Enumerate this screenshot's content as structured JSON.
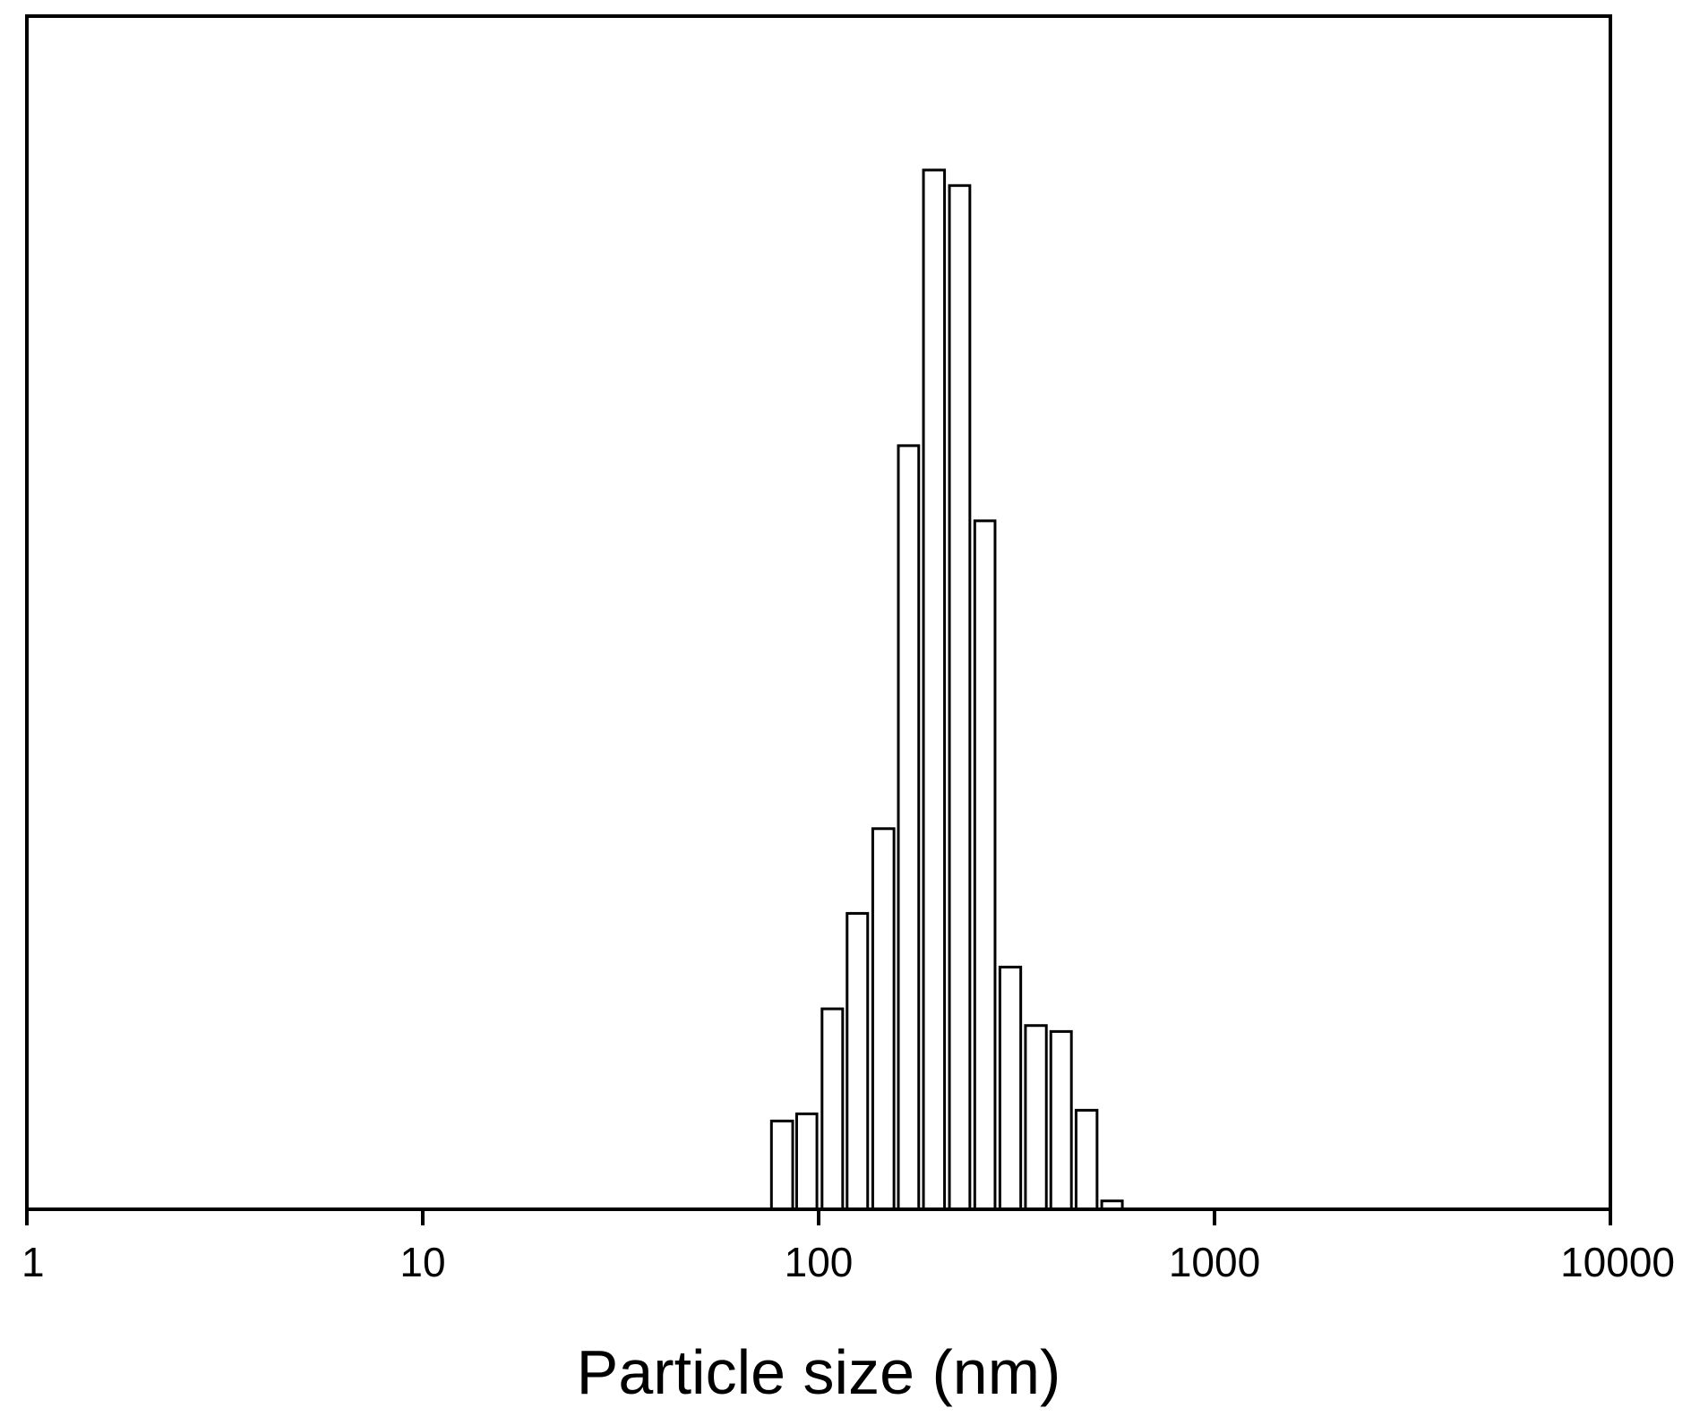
{
  "chart_data": {
    "type": "bar",
    "title": "",
    "xlabel": "Particle size (nm)",
    "ylabel": "",
    "x_scale": "log",
    "xlim": [
      1,
      10000
    ],
    "ylim": [
      0,
      1
    ],
    "x_ticks": [
      {
        "value": 1,
        "label": "1"
      },
      {
        "value": 10,
        "label": "10"
      },
      {
        "value": 100,
        "label": "100"
      },
      {
        "value": 1000,
        "label": "1000"
      },
      {
        "value": 10000,
        "label": "10000"
      }
    ],
    "y_ticks_shown": false,
    "grid": false,
    "legend": false,
    "bar_fill": "#ffffff",
    "bar_stroke": "#000000",
    "bins": [
      {
        "x0": 76,
        "x1": 86,
        "value": 0.074
      },
      {
        "x0": 88,
        "x1": 99,
        "value": 0.08
      },
      {
        "x0": 102,
        "x1": 115,
        "value": 0.168
      },
      {
        "x0": 118,
        "x1": 133,
        "value": 0.248
      },
      {
        "x0": 137,
        "x1": 155,
        "value": 0.319
      },
      {
        "x0": 159,
        "x1": 179,
        "value": 0.64
      },
      {
        "x0": 184,
        "x1": 208,
        "value": 0.871
      },
      {
        "x0": 214,
        "x1": 241,
        "value": 0.858
      },
      {
        "x0": 248,
        "x1": 279,
        "value": 0.577
      },
      {
        "x0": 287,
        "x1": 324,
        "value": 0.203
      },
      {
        "x0": 333,
        "x1": 376,
        "value": 0.154
      },
      {
        "x0": 386,
        "x1": 435,
        "value": 0.149
      },
      {
        "x0": 447,
        "x1": 505,
        "value": 0.083
      },
      {
        "x0": 519,
        "x1": 585,
        "value": 0.007
      }
    ]
  }
}
